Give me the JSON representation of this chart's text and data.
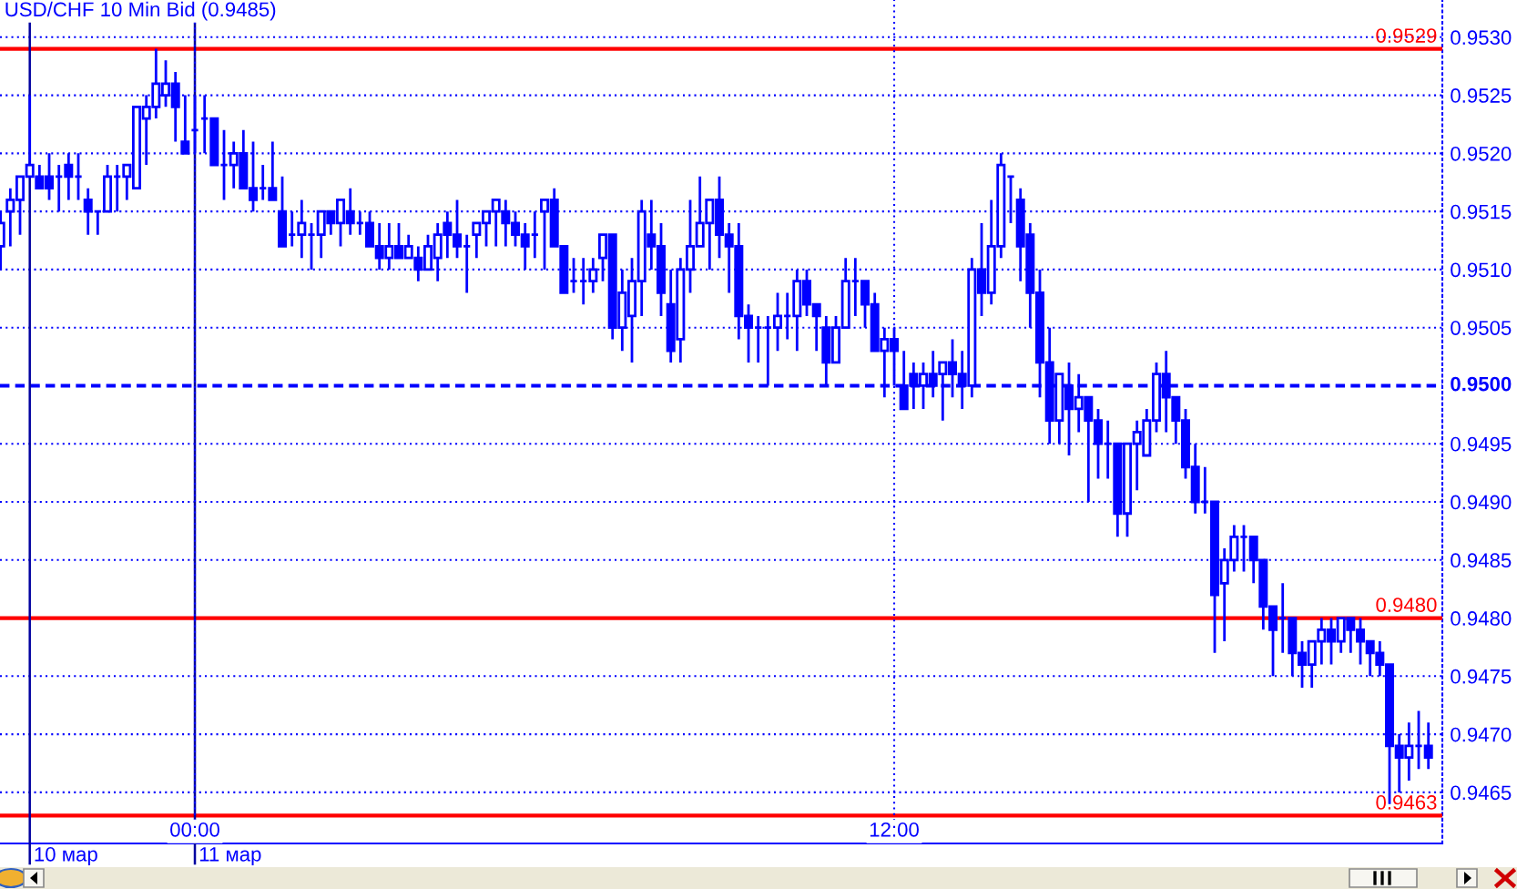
{
  "chart_data": {
    "type": "candlestick",
    "title": "USD/CHF 10 Min Bid (0.9485)",
    "color": "#0000ff",
    "x": [
      -3.333,
      -3.167,
      -3,
      -2.833,
      -2.667,
      -2.5,
      -2.333,
      -2.167,
      -2,
      -1.833,
      -1.667,
      -1.5,
      -1.333,
      -1.167,
      -1,
      -0.833,
      -0.667,
      -0.5,
      -0.333,
      -0.167,
      0,
      0.167,
      0.333,
      0.5,
      0.667,
      0.833,
      1,
      1.167,
      1.333,
      1.5,
      1.667,
      1.833,
      2,
      2.167,
      2.333,
      2.5,
      2.667,
      2.833,
      3,
      3.167,
      3.333,
      3.5,
      3.667,
      3.833,
      4,
      4.167,
      4.333,
      4.5,
      4.667,
      4.833,
      5,
      5.167,
      5.333,
      5.5,
      5.667,
      5.833,
      6,
      6.167,
      6.333,
      6.5,
      6.667,
      6.833,
      7,
      7.167,
      7.333,
      7.5,
      7.667,
      7.833,
      8,
      8.167,
      8.333,
      8.5,
      8.667,
      8.833,
      9,
      9.167,
      9.333,
      9.5,
      9.667,
      9.833,
      10,
      10.167,
      10.333,
      10.5,
      10.667,
      10.833,
      11,
      11.167,
      11.333,
      11.5,
      11.667,
      11.833,
      12,
      12.167,
      12.333,
      12.5,
      12.667,
      12.833,
      13,
      13.167,
      13.333,
      13.5,
      13.667,
      13.833,
      14,
      14.167,
      14.333,
      14.5,
      14.667,
      14.833,
      15,
      15.167,
      15.333,
      15.5,
      15.667,
      15.833,
      16,
      16.167,
      16.333,
      16.5,
      16.667,
      16.833,
      17,
      17.167,
      17.333,
      17.5,
      17.667,
      17.833,
      18,
      18.167,
      18.333,
      18.5,
      18.667,
      18.833,
      19,
      19.167,
      19.333,
      19.5,
      19.667,
      19.833,
      20,
      20.167,
      20.333,
      20.5,
      20.667,
      20.833,
      21,
      21.167
    ],
    "ohlc": [
      [
        0.9512,
        0.9515,
        0.951,
        0.9514
      ],
      [
        0.9515,
        0.9517,
        0.9512,
        0.9516
      ],
      [
        0.9516,
        0.9518,
        0.9513,
        0.9518
      ],
      [
        0.9518,
        0.9525,
        0.9518,
        0.9519
      ],
      [
        0.9518,
        0.9519,
        0.9517,
        0.9517
      ],
      [
        0.9518,
        0.952,
        0.9516,
        0.9517
      ],
      [
        0.9518,
        0.9519,
        0.9515,
        0.9518
      ],
      [
        0.9519,
        0.952,
        0.9516,
        0.9518
      ],
      [
        0.9518,
        0.952,
        0.9516,
        0.9518
      ],
      [
        0.9516,
        0.9517,
        0.9513,
        0.9515
      ],
      [
        0.9515,
        0.9515,
        0.9513,
        0.9515
      ],
      [
        0.9515,
        0.9519,
        0.9515,
        0.9518
      ],
      [
        0.9518,
        0.9519,
        0.9515,
        0.9518
      ],
      [
        0.9518,
        0.9519,
        0.9516,
        0.9519
      ],
      [
        0.9517,
        0.9524,
        0.9517,
        0.9524
      ],
      [
        0.9523,
        0.9525,
        0.9519,
        0.9524
      ],
      [
        0.9524,
        0.9529,
        0.9523,
        0.9526
      ],
      [
        0.9525,
        0.9528,
        0.9524,
        0.9526
      ],
      [
        0.9526,
        0.9527,
        0.9521,
        0.9524
      ],
      [
        0.9521,
        0.9525,
        0.952,
        0.952
      ],
      [
        0.9522,
        0.9525,
        0.952,
        0.9522
      ],
      [
        0.9523,
        0.9525,
        0.952,
        0.9523
      ],
      [
        0.9523,
        0.9523,
        0.9519,
        0.9519
      ],
      [
        0.9519,
        0.9522,
        0.9516,
        0.9519
      ],
      [
        0.9519,
        0.9521,
        0.9517,
        0.952
      ],
      [
        0.952,
        0.9522,
        0.9517,
        0.9517
      ],
      [
        0.9517,
        0.9521,
        0.9515,
        0.9516
      ],
      [
        0.9517,
        0.9519,
        0.9516,
        0.9517
      ],
      [
        0.9517,
        0.9521,
        0.9516,
        0.9516
      ],
      [
        0.9515,
        0.9518,
        0.9512,
        0.9512
      ],
      [
        0.9513,
        0.9515,
        0.9512,
        0.9513
      ],
      [
        0.9513,
        0.9516,
        0.9511,
        0.9514
      ],
      [
        0.9513,
        0.9514,
        0.951,
        0.9513
      ],
      [
        0.9513,
        0.9515,
        0.9511,
        0.9515
      ],
      [
        0.9515,
        0.9515,
        0.9513,
        0.9514
      ],
      [
        0.9514,
        0.9516,
        0.9512,
        0.9516
      ],
      [
        0.9515,
        0.9517,
        0.9513,
        0.9514
      ],
      [
        0.9514,
        0.9515,
        0.9513,
        0.9514
      ],
      [
        0.9514,
        0.9515,
        0.9512,
        0.9512
      ],
      [
        0.9512,
        0.9514,
        0.951,
        0.9511
      ],
      [
        0.9511,
        0.9514,
        0.951,
        0.9512
      ],
      [
        0.9512,
        0.9514,
        0.9511,
        0.9511
      ],
      [
        0.9511,
        0.9513,
        0.9511,
        0.9512
      ],
      [
        0.9511,
        0.9512,
        0.9509,
        0.951
      ],
      [
        0.951,
        0.9513,
        0.951,
        0.9512
      ],
      [
        0.9511,
        0.9514,
        0.9509,
        0.9513
      ],
      [
        0.9514,
        0.9515,
        0.9511,
        0.9513
      ],
      [
        0.9513,
        0.9516,
        0.9511,
        0.9512
      ],
      [
        0.9512,
        0.9513,
        0.9508,
        0.9512
      ],
      [
        0.9513,
        0.9514,
        0.9511,
        0.9514
      ],
      [
        0.9514,
        0.9515,
        0.9512,
        0.9515
      ],
      [
        0.9515,
        0.9516,
        0.9512,
        0.9516
      ],
      [
        0.9515,
        0.9516,
        0.9512,
        0.9514
      ],
      [
        0.9514,
        0.9515,
        0.9512,
        0.9513
      ],
      [
        0.9513,
        0.9514,
        0.951,
        0.9512
      ],
      [
        0.9513,
        0.9515,
        0.9511,
        0.9513
      ],
      [
        0.9515,
        0.9516,
        0.951,
        0.9516
      ],
      [
        0.9516,
        0.9517,
        0.9512,
        0.9512
      ],
      [
        0.9512,
        0.9512,
        0.9508,
        0.9508
      ],
      [
        0.9509,
        0.9511,
        0.9508,
        0.9509
      ],
      [
        0.9509,
        0.9511,
        0.9507,
        0.9509
      ],
      [
        0.9509,
        0.9511,
        0.9508,
        0.951
      ],
      [
        0.9511,
        0.9513,
        0.9509,
        0.9513
      ],
      [
        0.9513,
        0.9513,
        0.9504,
        0.9505
      ],
      [
        0.9505,
        0.951,
        0.9503,
        0.9508
      ],
      [
        0.9506,
        0.9511,
        0.9502,
        0.9509
      ],
      [
        0.9509,
        0.9516,
        0.9506,
        0.9515
      ],
      [
        0.9513,
        0.9516,
        0.951,
        0.9512
      ],
      [
        0.9512,
        0.9514,
        0.9506,
        0.9508
      ],
      [
        0.9507,
        0.951,
        0.9502,
        0.9503
      ],
      [
        0.9504,
        0.9511,
        0.9502,
        0.951
      ],
      [
        0.951,
        0.9516,
        0.9508,
        0.9512
      ],
      [
        0.9512,
        0.9518,
        0.9512,
        0.9514
      ],
      [
        0.9514,
        0.9516,
        0.951,
        0.9516
      ],
      [
        0.9516,
        0.9518,
        0.9511,
        0.9513
      ],
      [
        0.9513,
        0.9514,
        0.9508,
        0.9512
      ],
      [
        0.9512,
        0.9514,
        0.9504,
        0.9506
      ],
      [
        0.9506,
        0.9507,
        0.9502,
        0.9505
      ],
      [
        0.9505,
        0.9506,
        0.9502,
        0.9505
      ],
      [
        0.9505,
        0.9506,
        0.95,
        0.9505
      ],
      [
        0.9505,
        0.9508,
        0.9503,
        0.9506
      ],
      [
        0.9506,
        0.9508,
        0.9504,
        0.9506
      ],
      [
        0.9506,
        0.951,
        0.9503,
        0.9509
      ],
      [
        0.9509,
        0.951,
        0.9506,
        0.9507
      ],
      [
        0.9507,
        0.9507,
        0.9503,
        0.9506
      ],
      [
        0.9505,
        0.9506,
        0.95,
        0.9502
      ],
      [
        0.9502,
        0.9506,
        0.9502,
        0.9505
      ],
      [
        0.9505,
        0.9511,
        0.9505,
        0.9509
      ],
      [
        0.9509,
        0.9511,
        0.9506,
        0.9509
      ],
      [
        0.9509,
        0.9509,
        0.9505,
        0.9507
      ],
      [
        0.9507,
        0.9508,
        0.9503,
        0.9503
      ],
      [
        0.9503,
        0.9505,
        0.9499,
        0.9504
      ],
      [
        0.9504,
        0.9505,
        0.95,
        0.9503
      ],
      [
        0.95,
        0.9503,
        0.9498,
        0.9498
      ],
      [
        0.9501,
        0.9502,
        0.9498,
        0.95
      ],
      [
        0.95,
        0.9502,
        0.9498,
        0.9501
      ],
      [
        0.9501,
        0.9503,
        0.9499,
        0.95
      ],
      [
        0.9501,
        0.9502,
        0.9497,
        0.9502
      ],
      [
        0.9502,
        0.9504,
        0.9499,
        0.9501
      ],
      [
        0.9501,
        0.9503,
        0.9498,
        0.95
      ],
      [
        0.95,
        0.9511,
        0.9499,
        0.951
      ],
      [
        0.951,
        0.9514,
        0.9506,
        0.9508
      ],
      [
        0.9508,
        0.9516,
        0.9507,
        0.9512
      ],
      [
        0.9512,
        0.952,
        0.9511,
        0.9519
      ],
      [
        0.9518,
        0.9518,
        0.9514,
        0.9518
      ],
      [
        0.9516,
        0.9517,
        0.9509,
        0.9512
      ],
      [
        0.9513,
        0.9514,
        0.9505,
        0.9508
      ],
      [
        0.9508,
        0.951,
        0.9499,
        0.9502
      ],
      [
        0.9502,
        0.9505,
        0.9495,
        0.9497
      ],
      [
        0.9497,
        0.9501,
        0.9495,
        0.9501
      ],
      [
        0.95,
        0.9502,
        0.9494,
        0.9498
      ],
      [
        0.9498,
        0.9501,
        0.9496,
        0.9499
      ],
      [
        0.9499,
        0.9499,
        0.949,
        0.9497
      ],
      [
        0.9497,
        0.9498,
        0.9492,
        0.9495
      ],
      [
        0.9495,
        0.9497,
        0.9492,
        0.9495
      ],
      [
        0.9495,
        0.9495,
        0.9487,
        0.9489
      ],
      [
        0.9489,
        0.9495,
        0.9487,
        0.9495
      ],
      [
        0.9495,
        0.9497,
        0.9491,
        0.9496
      ],
      [
        0.9494,
        0.9498,
        0.9494,
        0.9497
      ],
      [
        0.9497,
        0.9502,
        0.9496,
        0.9501
      ],
      [
        0.9501,
        0.9503,
        0.9496,
        0.9499
      ],
      [
        0.9499,
        0.9499,
        0.9495,
        0.9497
      ],
      [
        0.9497,
        0.9498,
        0.9492,
        0.9493
      ],
      [
        0.9493,
        0.9495,
        0.9489,
        0.949
      ],
      [
        0.949,
        0.9493,
        0.9489,
        0.949
      ],
      [
        0.949,
        0.949,
        0.9477,
        0.9482
      ],
      [
        0.9483,
        0.9486,
        0.9478,
        0.9485
      ],
      [
        0.9485,
        0.9488,
        0.9484,
        0.9487
      ],
      [
        0.9487,
        0.9488,
        0.9484,
        0.9487
      ],
      [
        0.9487,
        0.9487,
        0.9483,
        0.9485
      ],
      [
        0.9485,
        0.9485,
        0.9479,
        0.9481
      ],
      [
        0.9481,
        0.9481,
        0.9475,
        0.9479
      ],
      [
        0.948,
        0.9483,
        0.9477,
        0.948
      ],
      [
        0.948,
        0.948,
        0.9475,
        0.9477
      ],
      [
        0.9477,
        0.9478,
        0.9474,
        0.9476
      ],
      [
        0.9476,
        0.9478,
        0.9474,
        0.9478
      ],
      [
        0.9478,
        0.948,
        0.9476,
        0.9479
      ],
      [
        0.9479,
        0.948,
        0.9476,
        0.9478
      ],
      [
        0.9478,
        0.948,
        0.9477,
        0.948
      ],
      [
        0.948,
        0.948,
        0.9477,
        0.9479
      ],
      [
        0.9479,
        0.948,
        0.9476,
        0.9478
      ],
      [
        0.9478,
        0.9478,
        0.9475,
        0.9477
      ],
      [
        0.9477,
        0.9478,
        0.9475,
        0.9476
      ],
      [
        0.9476,
        0.9476,
        0.9464,
        0.9469
      ],
      [
        0.9469,
        0.947,
        0.9465,
        0.9468
      ],
      [
        0.9468,
        0.9471,
        0.9466,
        0.9469
      ],
      [
        0.9469,
        0.9472,
        0.9467,
        0.9469
      ],
      [
        0.9469,
        0.9471,
        0.9467,
        0.9468
      ]
    ],
    "xlim": [
      -3.344,
      21.406
    ],
    "ylim": [
      0.94606,
      0.95332
    ],
    "xticks": [
      {
        "value": 0,
        "label": "00:00"
      },
      {
        "value": 12,
        "label": "12:00"
      }
    ],
    "yticks": [
      {
        "value": 0.9465,
        "label": "0.9465"
      },
      {
        "value": 0.947,
        "label": "0.9470"
      },
      {
        "value": 0.9475,
        "label": "0.9475"
      },
      {
        "value": 0.948,
        "label": "0.9480"
      },
      {
        "value": 0.9485,
        "label": "0.9485"
      },
      {
        "value": 0.949,
        "label": "0.9490"
      },
      {
        "value": 0.9495,
        "label": "0.9495"
      },
      {
        "value": 0.9505,
        "label": "0.9505"
      },
      {
        "value": 0.951,
        "label": "0.9510"
      },
      {
        "value": 0.9515,
        "label": "0.9515"
      },
      {
        "value": 0.952,
        "label": "0.9520"
      },
      {
        "value": 0.9525,
        "label": "0.9525"
      },
      {
        "value": 0.953,
        "label": "0.9530"
      }
    ],
    "grid": true,
    "ref_lines": [
      {
        "axis": "y",
        "value": 0.9529,
        "label": "0.9529",
        "color": "#ff0000"
      },
      {
        "axis": "y",
        "value": 0.95,
        "label": "0.9500",
        "color": "#0000ff",
        "line_style": "dashed"
      },
      {
        "axis": "y",
        "value": 0.948,
        "label": "0.9480",
        "color": "#ff0000"
      },
      {
        "axis": "y",
        "value": 0.9463,
        "label": "0.9463",
        "color": "#ff0000"
      },
      {
        "axis": "x",
        "value": -2.833,
        "label": "10 мар",
        "color": "#0000a0"
      },
      {
        "axis": "x",
        "value": 0,
        "label": "11 мар",
        "color": "#0000a0"
      }
    ]
  }
}
